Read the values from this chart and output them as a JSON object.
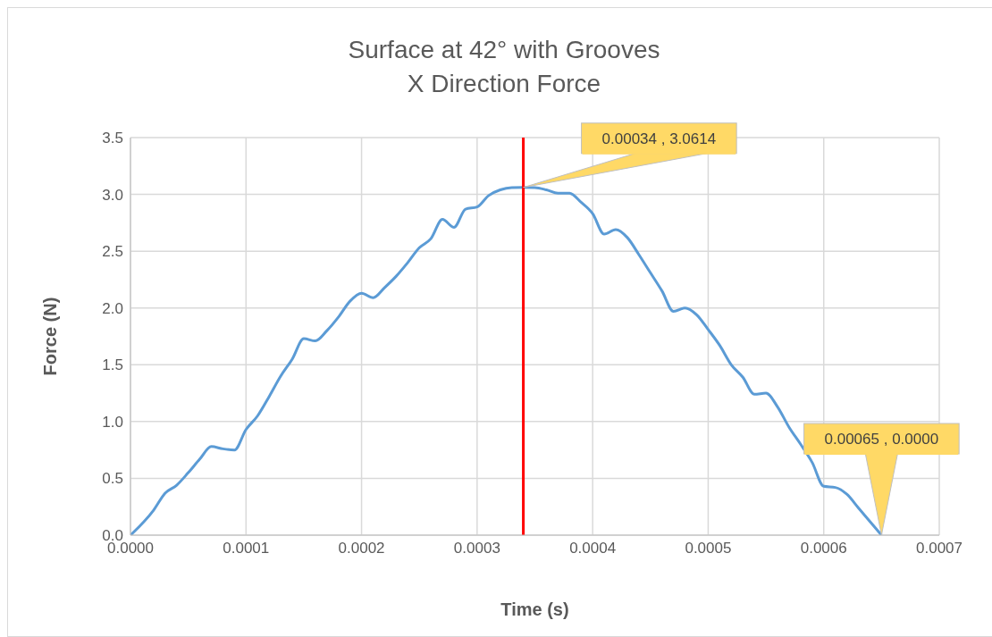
{
  "chart_data": {
    "type": "line",
    "title": "Surface  at 42° with Grooves",
    "subtitle": "X Direction Force",
    "xlabel": "Time (s)",
    "ylabel": "Force (N)",
    "x": [
      0,
      2e-05,
      3e-05,
      4e-05,
      5e-05,
      6e-05,
      7e-05,
      8e-05,
      9e-05,
      0.0001,
      0.00011,
      0.00012,
      0.00013,
      0.00014,
      0.00015,
      0.00016,
      0.00017,
      0.00018,
      0.00019,
      0.0002,
      0.00021,
      0.00022,
      0.00023,
      0.00024,
      0.00025,
      0.00026,
      0.00027,
      0.00028,
      0.00029,
      0.0003,
      0.00031,
      0.00032,
      0.00033,
      0.00034,
      0.00035,
      0.00036,
      0.00037,
      0.00038,
      0.00039,
      0.0004,
      0.00041,
      0.00042,
      0.00043,
      0.00044,
      0.00045,
      0.00046,
      0.00047,
      0.00048,
      0.00049,
      0.0005,
      0.00051,
      0.00052,
      0.00053,
      0.00054,
      0.00055,
      0.00056,
      0.00057,
      0.00058,
      0.00059,
      0.0006,
      0.00061,
      0.00062,
      0.00063,
      0.00064,
      0.00065
    ],
    "series": [
      {
        "color": "#5b9bd5",
        "values": [
          0,
          0.22,
          0.37,
          0.44,
          0.55,
          0.67,
          0.78,
          0.76,
          0.75,
          0.93,
          1.05,
          1.22,
          1.4,
          1.55,
          1.73,
          1.71,
          1.8,
          1.92,
          2.06,
          2.13,
          2.09,
          2.18,
          2.28,
          2.4,
          2.53,
          2.61,
          2.78,
          2.71,
          2.87,
          2.89,
          2.99,
          3.04,
          3.06,
          3.0614,
          3.06,
          3.04,
          3.01,
          3.01,
          2.93,
          2.83,
          2.65,
          2.69,
          2.62,
          2.47,
          2.31,
          2.15,
          1.97,
          2.0,
          1.94,
          1.81,
          1.67,
          1.5,
          1.39,
          1.24,
          1.25,
          1.13,
          0.95,
          0.8,
          0.64,
          0.43,
          0.42,
          0.36,
          0.24,
          0.12,
          0
        ]
      }
    ],
    "xlim": [
      0,
      0.0007
    ],
    "xticks": [
      {
        "value": 0,
        "label": "0.0000"
      },
      {
        "value": 0.0001,
        "label": "0.0001"
      },
      {
        "value": 0.0002,
        "label": "0.0002"
      },
      {
        "value": 0.0003,
        "label": "0.0003"
      },
      {
        "value": 0.0004,
        "label": "0.0004"
      },
      {
        "value": 0.0005,
        "label": "0.0005"
      },
      {
        "value": 0.0006,
        "label": "0.0006"
      },
      {
        "value": 0.0007,
        "label": "0.0007"
      }
    ],
    "ylim": [
      0,
      3.5
    ],
    "yticks": [
      {
        "value": 0,
        "label": "0.0"
      },
      {
        "value": 0.5,
        "label": "0.5"
      },
      {
        "value": 1,
        "label": "1.0"
      },
      {
        "value": 1.5,
        "label": "1.5"
      },
      {
        "value": 2,
        "label": "2.0"
      },
      {
        "value": 2.5,
        "label": "2.5"
      },
      {
        "value": 3,
        "label": "3.0"
      },
      {
        "value": 3.5,
        "label": "3.5"
      }
    ],
    "grid": true,
    "legend": false,
    "marker": "none",
    "line_style": "solid",
    "ref_lines": [
      {
        "axis": "x",
        "value": 0.00034,
        "color": "#ff0000"
      }
    ],
    "annotations": [
      {
        "text": "0.00034 , 3.0614",
        "x": 0.00034,
        "y": 3.0614
      },
      {
        "text": "0.00065 , 0.0000",
        "x": 0.00065,
        "y": 0
      }
    ]
  }
}
